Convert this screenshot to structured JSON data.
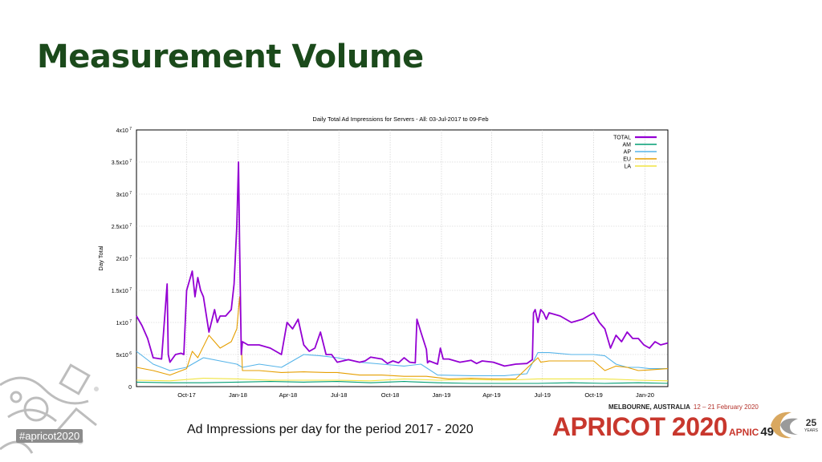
{
  "slide": {
    "title": "Measurement Volume",
    "caption": "Ad Impressions per day  for the period 2017 - 2020",
    "hashtag": "#apricot2020"
  },
  "logo": {
    "location": "MELBOURNE, AUSTRALIA",
    "dates": "12 – 21 February 2020",
    "name": "APRICOT 2020",
    "apnic": "APNIC",
    "apnic_num": "49",
    "years": "25",
    "years_label": "YEARS"
  },
  "colors": {
    "title": "#1b4a1b",
    "TOTAL": "#9400d3",
    "AM": "#009e73",
    "AP": "#56b4e9",
    "EU": "#e69f00",
    "LA": "#f0e442"
  },
  "chart_data": {
    "type": "line",
    "title": "Daily Total Ad Impressions for Servers - All: 03-Jul-2017 to 09-Feb",
    "xlabel": "",
    "ylabel": "Day Total",
    "xlim": [
      0,
      953
    ],
    "ylim": [
      0,
      40000000
    ],
    "grid": true,
    "legend": "top-right",
    "y_ticks": [
      {
        "value": 0,
        "label": "0"
      },
      {
        "value": 5000000,
        "label": "5x10",
        "exp": "6"
      },
      {
        "value": 10000000,
        "label": "1x10",
        "exp": "7"
      },
      {
        "value": 15000000,
        "label": "1.5x10",
        "exp": "7"
      },
      {
        "value": 20000000,
        "label": "2x10",
        "exp": "7"
      },
      {
        "value": 25000000,
        "label": "2.5x10",
        "exp": "7"
      },
      {
        "value": 30000000,
        "label": "3x10",
        "exp": "7"
      },
      {
        "value": 35000000,
        "label": "3.5x10",
        "exp": "7"
      },
      {
        "value": 40000000,
        "label": "4x10",
        "exp": "7"
      }
    ],
    "x_ticks": [
      {
        "value": 90,
        "label": "Oct-17"
      },
      {
        "value": 182,
        "label": "Jan-18"
      },
      {
        "value": 272,
        "label": "Apr-18"
      },
      {
        "value": 363,
        "label": "Jul-18"
      },
      {
        "value": 455,
        "label": "Oct-18"
      },
      {
        "value": 547,
        "label": "Jan-19"
      },
      {
        "value": 637,
        "label": "Apr-19"
      },
      {
        "value": 728,
        "label": "Jul-19"
      },
      {
        "value": 820,
        "label": "Oct-19"
      },
      {
        "value": 912,
        "label": "Jan-20"
      }
    ],
    "series": [
      {
        "name": "TOTAL",
        "x": [
          0,
          10,
          20,
          30,
          45,
          55,
          57,
          60,
          70,
          80,
          85,
          90,
          100,
          105,
          110,
          115,
          120,
          130,
          140,
          145,
          150,
          160,
          170,
          175,
          180,
          183,
          185,
          188,
          190,
          200,
          220,
          240,
          260,
          270,
          280,
          290,
          300,
          310,
          320,
          330,
          340,
          350,
          360,
          380,
          400,
          410,
          420,
          440,
          450,
          460,
          470,
          480,
          490,
          500,
          503,
          510,
          520,
          522,
          525,
          540,
          545,
          550,
          560,
          580,
          600,
          610,
          620,
          640,
          660,
          680,
          700,
          710,
          712,
          715,
          720,
          725,
          730,
          735,
          740,
          760,
          780,
          800,
          820,
          830,
          835,
          840,
          850,
          860,
          870,
          880,
          890,
          900,
          910,
          920,
          930,
          940,
          953
        ],
        "values": [
          11000000,
          9500000,
          7500000,
          4500000,
          4300000,
          16000000,
          5000000,
          3800000,
          5000000,
          5200000,
          5000000,
          15000000,
          18000000,
          14000000,
          17000000,
          15000000,
          14000000,
          8500000,
          12000000,
          10000000,
          11000000,
          11000000,
          12000000,
          16000000,
          25000000,
          35000000,
          22000000,
          5000000,
          7000000,
          6500000,
          6500000,
          6000000,
          5000000,
          10000000,
          9000000,
          10500000,
          6500000,
          5500000,
          6000000,
          8500000,
          5000000,
          5000000,
          3800000,
          4200000,
          3800000,
          4000000,
          4600000,
          4300000,
          3600000,
          4000000,
          3700000,
          4500000,
          3800000,
          3700000,
          10500000,
          8500000,
          5800000,
          3700000,
          4000000,
          3500000,
          6000000,
          4300000,
          4300000,
          3800000,
          4100000,
          3600000,
          4000000,
          3800000,
          3200000,
          3500000,
          3600000,
          4200000,
          11500000,
          12000000,
          10000000,
          12000000,
          11500000,
          10500000,
          11500000,
          11000000,
          10000000,
          10500000,
          11500000,
          10000000,
          9500000,
          9000000,
          6000000,
          8000000,
          7000000,
          8500000,
          7500000,
          7500000,
          6500000,
          6000000,
          7000000,
          6500000,
          6800000
        ]
      },
      {
        "name": "AM",
        "x": [
          0,
          60,
          120,
          180,
          240,
          300,
          360,
          420,
          480,
          540,
          600,
          660,
          720,
          780,
          840,
          900,
          953
        ],
        "values": [
          700000,
          600000,
          600000,
          700000,
          800000,
          700000,
          800000,
          600000,
          800000,
          600000,
          500000,
          500000,
          500000,
          600000,
          500000,
          600000,
          500000
        ]
      },
      {
        "name": "AP",
        "x": [
          0,
          30,
          60,
          90,
          120,
          150,
          180,
          190,
          220,
          260,
          280,
          300,
          330,
          360,
          400,
          440,
          480,
          510,
          540,
          600,
          660,
          700,
          720,
          740,
          780,
          820,
          840,
          860,
          880,
          900,
          920,
          953
        ],
        "values": [
          5500000,
          3500000,
          2500000,
          3000000,
          4500000,
          4000000,
          3500000,
          3000000,
          3500000,
          3000000,
          4000000,
          5000000,
          4800000,
          4500000,
          3800000,
          3500000,
          3200000,
          3500000,
          1800000,
          1700000,
          1700000,
          2000000,
          5300000,
          5300000,
          5000000,
          5000000,
          4800000,
          3500000,
          3000000,
          3000000,
          2800000,
          2800000
        ]
      },
      {
        "name": "EU",
        "x": [
          0,
          30,
          60,
          90,
          100,
          110,
          130,
          150,
          170,
          180,
          185,
          190,
          220,
          260,
          300,
          340,
          360,
          400,
          440,
          480,
          520,
          560,
          600,
          640,
          680,
          720,
          725,
          740,
          780,
          820,
          840,
          860,
          880,
          900,
          920,
          953
        ],
        "values": [
          3000000,
          2500000,
          1800000,
          2800000,
          5500000,
          4500000,
          8000000,
          6000000,
          7000000,
          9000000,
          14000000,
          2500000,
          2500000,
          2200000,
          2300000,
          2200000,
          2200000,
          1800000,
          1800000,
          1600000,
          1600000,
          1200000,
          1300000,
          1200000,
          1200000,
          4500000,
          3800000,
          4000000,
          4000000,
          4000000,
          2500000,
          3200000,
          3000000,
          2500000,
          2600000,
          2800000
        ]
      },
      {
        "name": "LA",
        "x": [
          0,
          60,
          120,
          180,
          240,
          300,
          360,
          420,
          480,
          540,
          600,
          660,
          720,
          780,
          840,
          900,
          953
        ],
        "values": [
          1000000,
          900000,
          1300000,
          1200000,
          1000000,
          1000000,
          1000000,
          900000,
          1200000,
          1000000,
          1100000,
          1000000,
          1200000,
          1200000,
          1200000,
          1000000,
          900000
        ]
      }
    ]
  }
}
